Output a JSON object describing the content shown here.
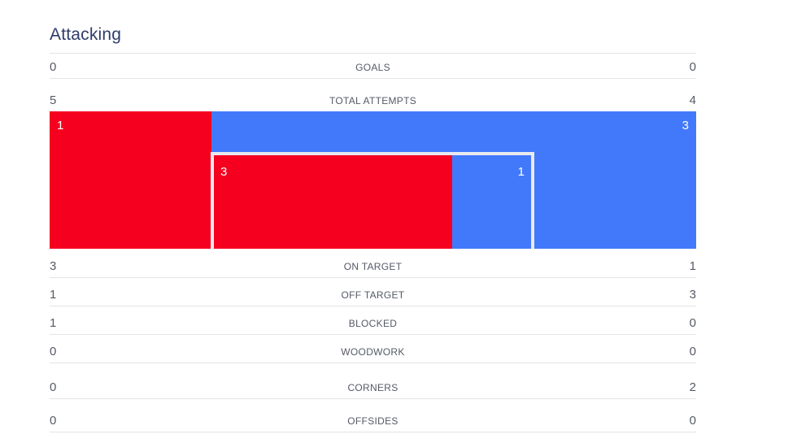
{
  "section": {
    "title": "Attacking"
  },
  "stats": {
    "goals": {
      "label": "GOALS",
      "home": "0",
      "away": "0"
    },
    "total_attempts": {
      "label": "TOTAL ATTEMPTS",
      "home": "5",
      "away": "4"
    },
    "on_target": {
      "label": "ON TARGET",
      "home": "3",
      "away": "1"
    },
    "off_target": {
      "label": "OFF TARGET",
      "home": "1",
      "away": "3"
    },
    "blocked": {
      "label": "BLOCKED",
      "home": "1",
      "away": "0"
    },
    "woodwork": {
      "label": "WOODWORK",
      "home": "0",
      "away": "0"
    },
    "corners": {
      "label": "CORNERS",
      "home": "0",
      "away": "2"
    },
    "offsides": {
      "label": "OFFSIDES",
      "home": "0",
      "away": "0"
    }
  },
  "attempts_graphic": {
    "home_off_target": "1",
    "away_off_target": "3",
    "home_on_target": "3",
    "away_on_target": "1"
  },
  "colors": {
    "home": "#f5001f",
    "away": "#4279fb",
    "title": "#2f3c6b",
    "text": "#555a66",
    "divider": "#e3e4e8",
    "goal_frame": "#e8eaf0"
  }
}
